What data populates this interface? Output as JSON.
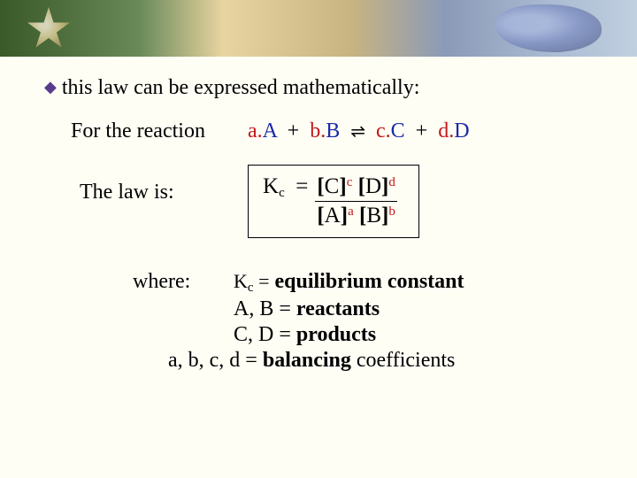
{
  "colors": {
    "background": "#fffef5",
    "bullet_diamond": "#5a3a8a",
    "coefficient": "#c01818",
    "species": "#1a2aa8",
    "text": "#000000",
    "box_border": "#000000"
  },
  "typography": {
    "body_font": "Georgia, Times New Roman, serif",
    "body_size_pt": 18,
    "superscript_size_pt": 11
  },
  "bullet": {
    "symbol": "◆",
    "text": "this law can be expressed mathematically:"
  },
  "reaction": {
    "label": "For the reaction",
    "terms": [
      {
        "coef": "a.",
        "species": "A"
      },
      {
        "coef": "b.",
        "species": "B"
      },
      {
        "coef": "c.",
        "species": "C"
      },
      {
        "coef": "d.",
        "species": "D"
      }
    ],
    "plus": "+",
    "equilibrium_arrow": "⇌"
  },
  "law": {
    "label": "The law is:",
    "lhs_symbol": "K",
    "lhs_subscript": "c",
    "equals": "=",
    "numerator": {
      "t1": {
        "species": "C",
        "exp": "c"
      },
      "t2": {
        "species": "D",
        "exp": "d"
      }
    },
    "denominator": {
      "t1": {
        "species": "A",
        "exp": "a"
      },
      "t2": {
        "species": "B",
        "exp": "b"
      }
    }
  },
  "where": {
    "label": "where:",
    "lines": {
      "l1": {
        "left": "Kc =",
        "right": "equilibrium constant"
      },
      "l2": {
        "left": "A, B =",
        "right": "reactants"
      },
      "l3": {
        "left": "C, D =",
        "right": "products"
      },
      "l4": {
        "left": "a, b, c, d =",
        "right_bold": "balancing",
        "right_plain": " coefficients"
      }
    }
  }
}
